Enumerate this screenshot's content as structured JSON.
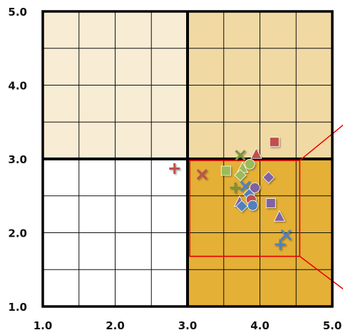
{
  "chart_data": {
    "type": "scatter",
    "title": "",
    "xlabel": "",
    "ylabel": "",
    "xlim": [
      1.0,
      5.0
    ],
    "ylim": [
      1.0,
      5.0
    ],
    "x_ticks": [
      "1.0",
      "2.0",
      "3.0",
      "4.0",
      "5.0"
    ],
    "y_ticks": [
      "1.0",
      "2.0",
      "3.0",
      "4.0",
      "5.0"
    ],
    "grid": true,
    "legend": "none",
    "quadrants": [
      {
        "x": [
          1.0,
          3.0
        ],
        "y": [
          3.0,
          5.0
        ],
        "color": "#f8ecd4"
      },
      {
        "x": [
          3.0,
          5.0
        ],
        "y": [
          3.0,
          5.0
        ],
        "color": "#f0d9a3"
      },
      {
        "x": [
          1.0,
          3.0
        ],
        "y": [
          1.0,
          3.0
        ],
        "color": "#ffffff"
      },
      {
        "x": [
          3.0,
          5.0
        ],
        "y": [
          1.0,
          3.0
        ],
        "color": "#e4b036"
      }
    ],
    "highlight_box": {
      "x": [
        3.03,
        4.55
      ],
      "y": [
        1.68,
        2.98
      ],
      "color": "#e60000"
    },
    "callout_lines": [
      {
        "from": [
          4.55,
          2.98
        ],
        "to": [
          5.2,
          3.5
        ]
      },
      {
        "from": [
          4.55,
          1.68
        ],
        "to": [
          5.2,
          1.2
        ]
      }
    ],
    "points": [
      {
        "x": 2.82,
        "y": 2.87,
        "marker": "plus",
        "color": "#c0504d"
      },
      {
        "x": 3.2,
        "y": 2.79,
        "marker": "x",
        "color": "#c0504d"
      },
      {
        "x": 3.73,
        "y": 3.05,
        "marker": "x",
        "color": "#77933c"
      },
      {
        "x": 3.95,
        "y": 3.07,
        "marker": "triangle",
        "color": "#c0504d"
      },
      {
        "x": 4.2,
        "y": 3.23,
        "marker": "square",
        "color": "#c0504d"
      },
      {
        "x": 3.53,
        "y": 2.84,
        "marker": "square",
        "color": "#9bbb59"
      },
      {
        "x": 3.76,
        "y": 2.88,
        "marker": "triangle",
        "color": "#9bbb59"
      },
      {
        "x": 3.86,
        "y": 2.93,
        "marker": "circle",
        "color": "#9bbb59"
      },
      {
        "x": 3.73,
        "y": 2.78,
        "marker": "diamond",
        "color": "#9bbb59"
      },
      {
        "x": 4.12,
        "y": 2.75,
        "marker": "diamond",
        "color": "#8064a2"
      },
      {
        "x": 3.66,
        "y": 2.61,
        "marker": "plus",
        "color": "#77933c"
      },
      {
        "x": 3.8,
        "y": 2.63,
        "marker": "x",
        "color": "#4f81bd"
      },
      {
        "x": 3.93,
        "y": 2.61,
        "marker": "circle",
        "color": "#8064a2"
      },
      {
        "x": 3.85,
        "y": 2.52,
        "marker": "diamond",
        "color": "#4f81bd"
      },
      {
        "x": 3.88,
        "y": 2.45,
        "marker": "circle",
        "color": "#c0504d"
      },
      {
        "x": 3.72,
        "y": 2.42,
        "marker": "triangle",
        "color": "#8064a2"
      },
      {
        "x": 4.15,
        "y": 2.4,
        "marker": "square",
        "color": "#8064a2"
      },
      {
        "x": 3.75,
        "y": 2.36,
        "marker": "diamond",
        "color": "#4f81bd"
      },
      {
        "x": 3.9,
        "y": 2.37,
        "marker": "circle",
        "color": "#4f81bd"
      },
      {
        "x": 4.27,
        "y": 2.22,
        "marker": "triangle",
        "color": "#8064a2"
      },
      {
        "x": 4.36,
        "y": 1.97,
        "marker": "x",
        "color": "#4f81bd"
      },
      {
        "x": 4.28,
        "y": 1.84,
        "marker": "plus",
        "color": "#4f81bd"
      }
    ]
  }
}
